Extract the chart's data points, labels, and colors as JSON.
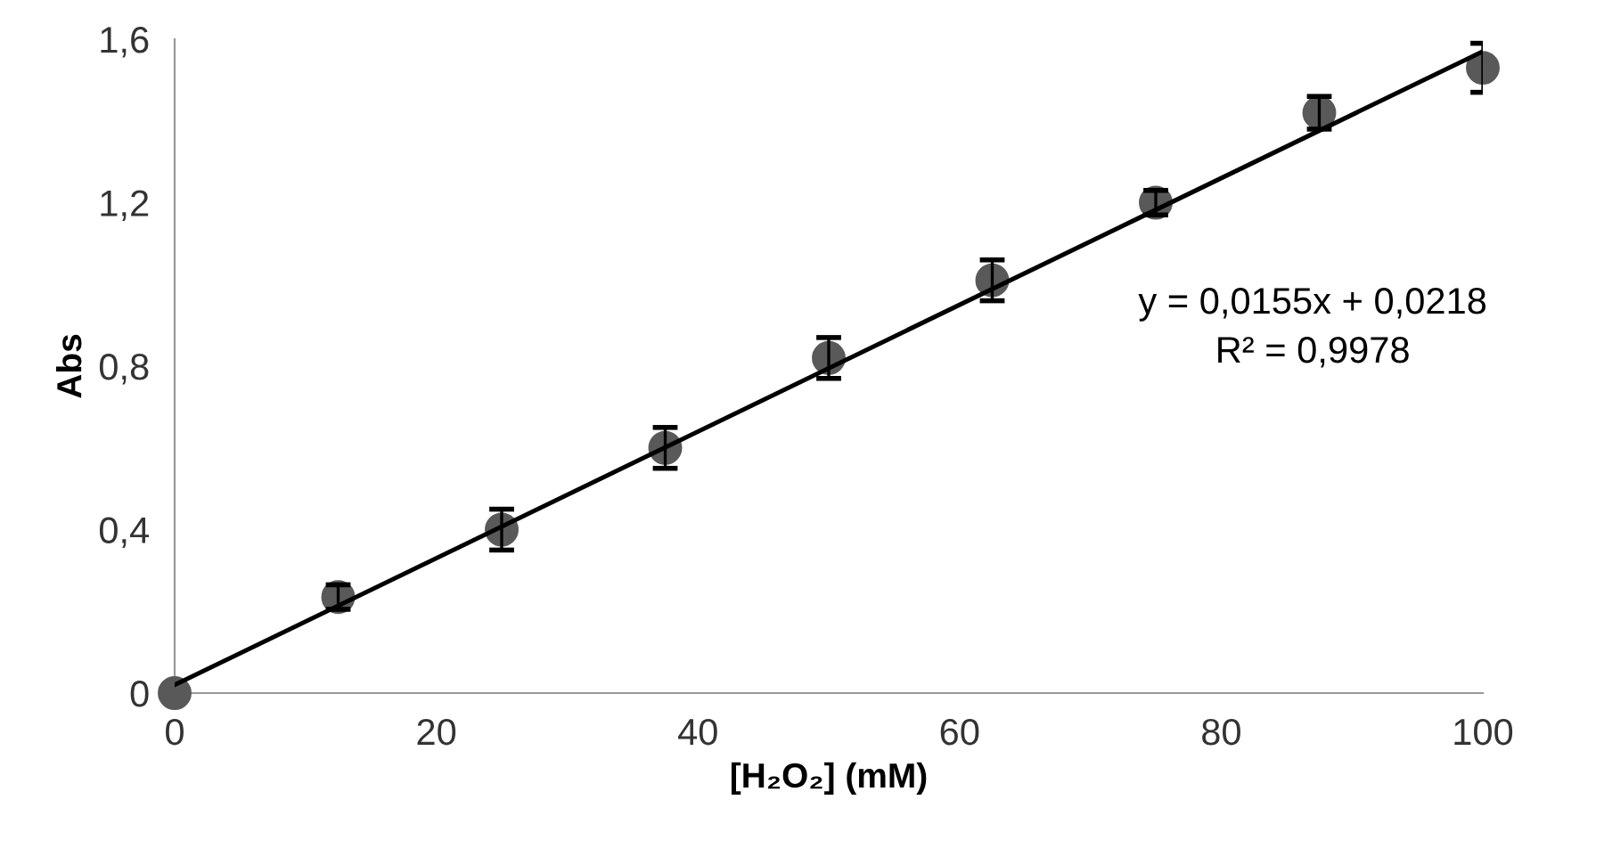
{
  "chart_data": {
    "type": "scatter",
    "xlabel": "[H₂O₂] (mM)",
    "ylabel": "Abs",
    "x": [
      0,
      12.5,
      25,
      37.5,
      50,
      62.5,
      75,
      87.5,
      100
    ],
    "series": [
      {
        "color": "#595959",
        "marker": "circle",
        "values": [
          0,
          0.235,
          0.4,
          0.6,
          0.82,
          1.01,
          1.2,
          1.42,
          1.53
        ],
        "errors": [
          null,
          0.03,
          0.05,
          0.05,
          0.05,
          0.05,
          0.03,
          0.04,
          0.06
        ]
      },
      {
        "type": "line",
        "color": "#000000",
        "marker": "none",
        "x": [
          0,
          100
        ],
        "values": [
          0.02,
          1.57
        ]
      }
    ],
    "xlim": [
      0,
      100
    ],
    "ylim": [
      0,
      1.6
    ],
    "xticks": [
      0,
      20,
      40,
      60,
      80,
      100
    ],
    "yticks": [
      0,
      {
        "value": 0.4,
        "label": "0,4"
      },
      {
        "value": 0.8,
        "label": "0,8"
      },
      {
        "value": 1.2,
        "label": "1,2"
      },
      {
        "value": 1.6,
        "label": "1,6"
      }
    ],
    "annotations": [
      "y = 0,0155x + 0,0218",
      "R² = 0,9978"
    ],
    "grid": false,
    "legend": false
  }
}
